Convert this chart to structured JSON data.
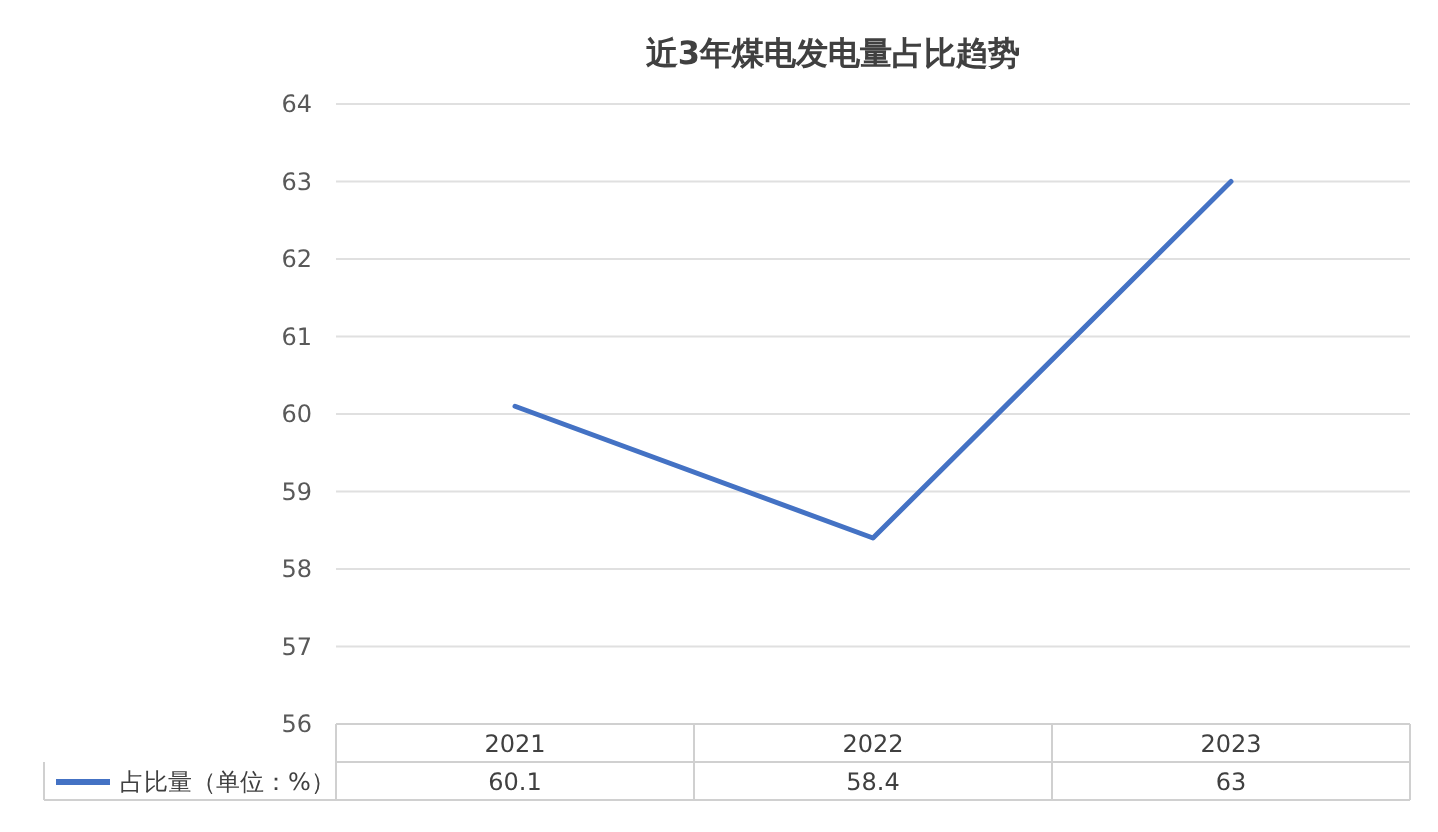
{
  "chart_data": {
    "type": "line",
    "title": "近3年煤电发电量占比趋势",
    "categories": [
      "2021",
      "2022",
      "2023"
    ],
    "series": [
      {
        "name": "占比量（单位：%）",
        "color": "#4472c4",
        "values": [
          60.1,
          58.4,
          63
        ]
      }
    ],
    "ylim": [
      56,
      64
    ],
    "yticks": [
      56,
      57,
      58,
      59,
      60,
      61,
      62,
      63,
      64
    ],
    "grid": "y",
    "legend": "bottom left",
    "data_labels": true,
    "marker": "none"
  }
}
